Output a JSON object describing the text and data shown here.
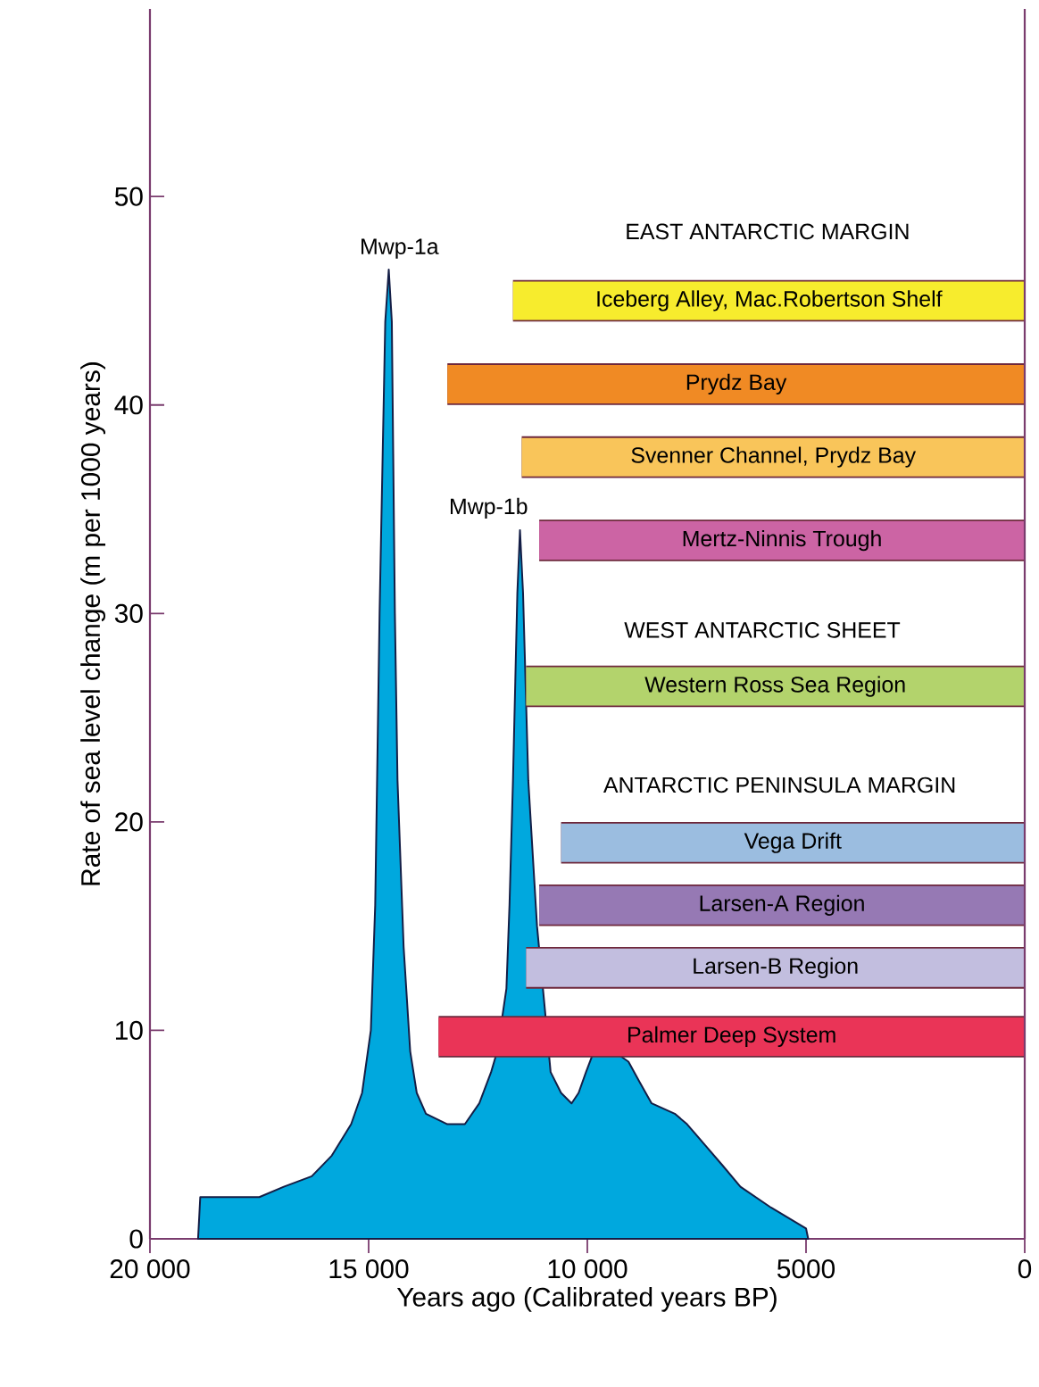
{
  "chart_data": {
    "type": "area",
    "xlabel": "Years ago (Calibrated years BP)",
    "ylabel": "Rate of sea level change (m per 1000 years)",
    "xlim": [
      20000,
      0
    ],
    "xticks": [
      {
        "value": 20000,
        "label": "20 000"
      },
      {
        "value": 15000,
        "label": "15 000"
      },
      {
        "value": 10000,
        "label": "10 000"
      },
      5000,
      0
    ],
    "ylim": [
      0,
      59
    ],
    "yticks": [
      0,
      10,
      20,
      30,
      40,
      50
    ],
    "series": [
      {
        "color": "#00a8de",
        "x": [
          18900,
          18850,
          17500,
          16940,
          16300,
          15840,
          15400,
          15150,
          14950,
          14850,
          14750,
          14620,
          14540,
          14470,
          14400,
          14340,
          14200,
          14050,
          13900,
          13690,
          13200,
          12800,
          12470,
          12200,
          12060,
          11850,
          11780,
          11700,
          11600,
          11540,
          11470,
          11350,
          11150,
          10970,
          10840,
          10600,
          10360,
          10200,
          10030,
          9850,
          9650,
          9400,
          9060,
          8800,
          8530,
          8000,
          7720,
          7310,
          6900,
          6500,
          5800,
          5000,
          4950
        ],
        "values": [
          0,
          2,
          2,
          2.5,
          3,
          4,
          5.5,
          7,
          10,
          16,
          30,
          44,
          46.5,
          44,
          30,
          22,
          14,
          9,
          7,
          6,
          5.5,
          5.5,
          6.5,
          8,
          9,
          12,
          16,
          22,
          31,
          34,
          31,
          22,
          15,
          11,
          8,
          7,
          6.5,
          7,
          8,
          9,
          9.5,
          9,
          8.5,
          7.5,
          6.5,
          6,
          5.5,
          4.5,
          3.5,
          2.5,
          1.5,
          0.5,
          0
        ]
      },
      {
        "type": "line",
        "name": "Iceberg Alley, Mac.Robertson Shelf",
        "color": "#f7ec2d",
        "x": [
          11700,
          0
        ],
        "values": [
          45,
          45
        ]
      },
      {
        "type": "line",
        "name": "Prydz Bay",
        "color": "#f08a24",
        "x": [
          13200,
          0
        ],
        "values": [
          41,
          41
        ]
      },
      {
        "type": "line",
        "name": "Svenner Channel, Prydz Bay",
        "color": "#f9c55a",
        "x": [
          11500,
          0
        ],
        "values": [
          37.5,
          37.5
        ]
      },
      {
        "type": "line",
        "name": "Mertz-Ninnis Trough",
        "color": "#cc64a4",
        "x": [
          11100,
          0
        ],
        "values": [
          33.5,
          33.5
        ]
      },
      {
        "type": "line",
        "name": "Western Ross Sea Region",
        "color": "#b3d36c",
        "x": [
          11400,
          0
        ],
        "values": [
          26.5,
          26.5
        ]
      },
      {
        "type": "line",
        "name": "Vega Drift",
        "color": "#9bbde0",
        "x": [
          10600,
          0
        ],
        "values": [
          19,
          19
        ]
      },
      {
        "type": "line",
        "name": "Larsen-A Region",
        "color": "#9679b4",
        "x": [
          11100,
          0
        ],
        "values": [
          16,
          16
        ]
      },
      {
        "type": "line",
        "name": "Larsen-B Region",
        "color": "#c2bedf",
        "x": [
          11400,
          0
        ],
        "values": [
          13,
          13
        ]
      },
      {
        "type": "line",
        "name": "Palmer Deep System",
        "color": "#ea3457",
        "x": [
          13400,
          0
        ],
        "values": [
          9.7,
          9.7
        ]
      }
    ],
    "annotations": [
      "Mwp-1a",
      "Mwp-1b",
      "EAST ANTARCTIC MARGIN",
      "WEST ANTARCTIC SHEET",
      "ANTARCTIC PENINSULA MARGIN"
    ]
  }
}
